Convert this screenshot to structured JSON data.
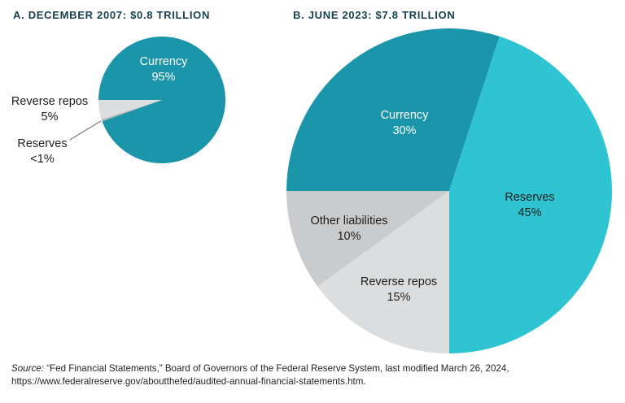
{
  "chart_data": [
    {
      "type": "pie",
      "title": "A. DECEMBER 2007: $0.8 TRILLION",
      "start_angle_deg": 180,
      "direction": "clockwise",
      "slices": [
        {
          "label": "Currency",
          "pct": "95%",
          "value": 95,
          "color": "#1b95a9"
        },
        {
          "label": "Reserves",
          "pct": "<1%",
          "value": 0.5,
          "color": "#b4b8ba"
        },
        {
          "label": "Reverse repos",
          "pct": "5%",
          "value": 5,
          "color": "#dcddde"
        }
      ]
    },
    {
      "type": "pie",
      "title": "B. JUNE 2023: $7.8 TRILLION",
      "start_angle_deg": 180,
      "direction": "clockwise",
      "slices": [
        {
          "label": "Currency",
          "pct": "30%",
          "value": 30,
          "color": "#1b95a9"
        },
        {
          "label": "Reserves",
          "pct": "45%",
          "value": 45,
          "color": "#2fc4d1"
        },
        {
          "label": "Reverse repos",
          "pct": "15%",
          "value": 15,
          "color": "#dcddde"
        },
        {
          "label": "Other liabilities",
          "pct": "10%",
          "value": 10,
          "color": "#c9cbcd"
        }
      ]
    }
  ],
  "source": {
    "label": "Source:",
    "line1": " “Fed Financial Statements,” Board of Governors of the Federal Reserve System, last modified March 26, 2024,",
    "line2": "https://www.federalreserve.gov/aboutthefed/audited-annual-financial-statements.htm."
  }
}
